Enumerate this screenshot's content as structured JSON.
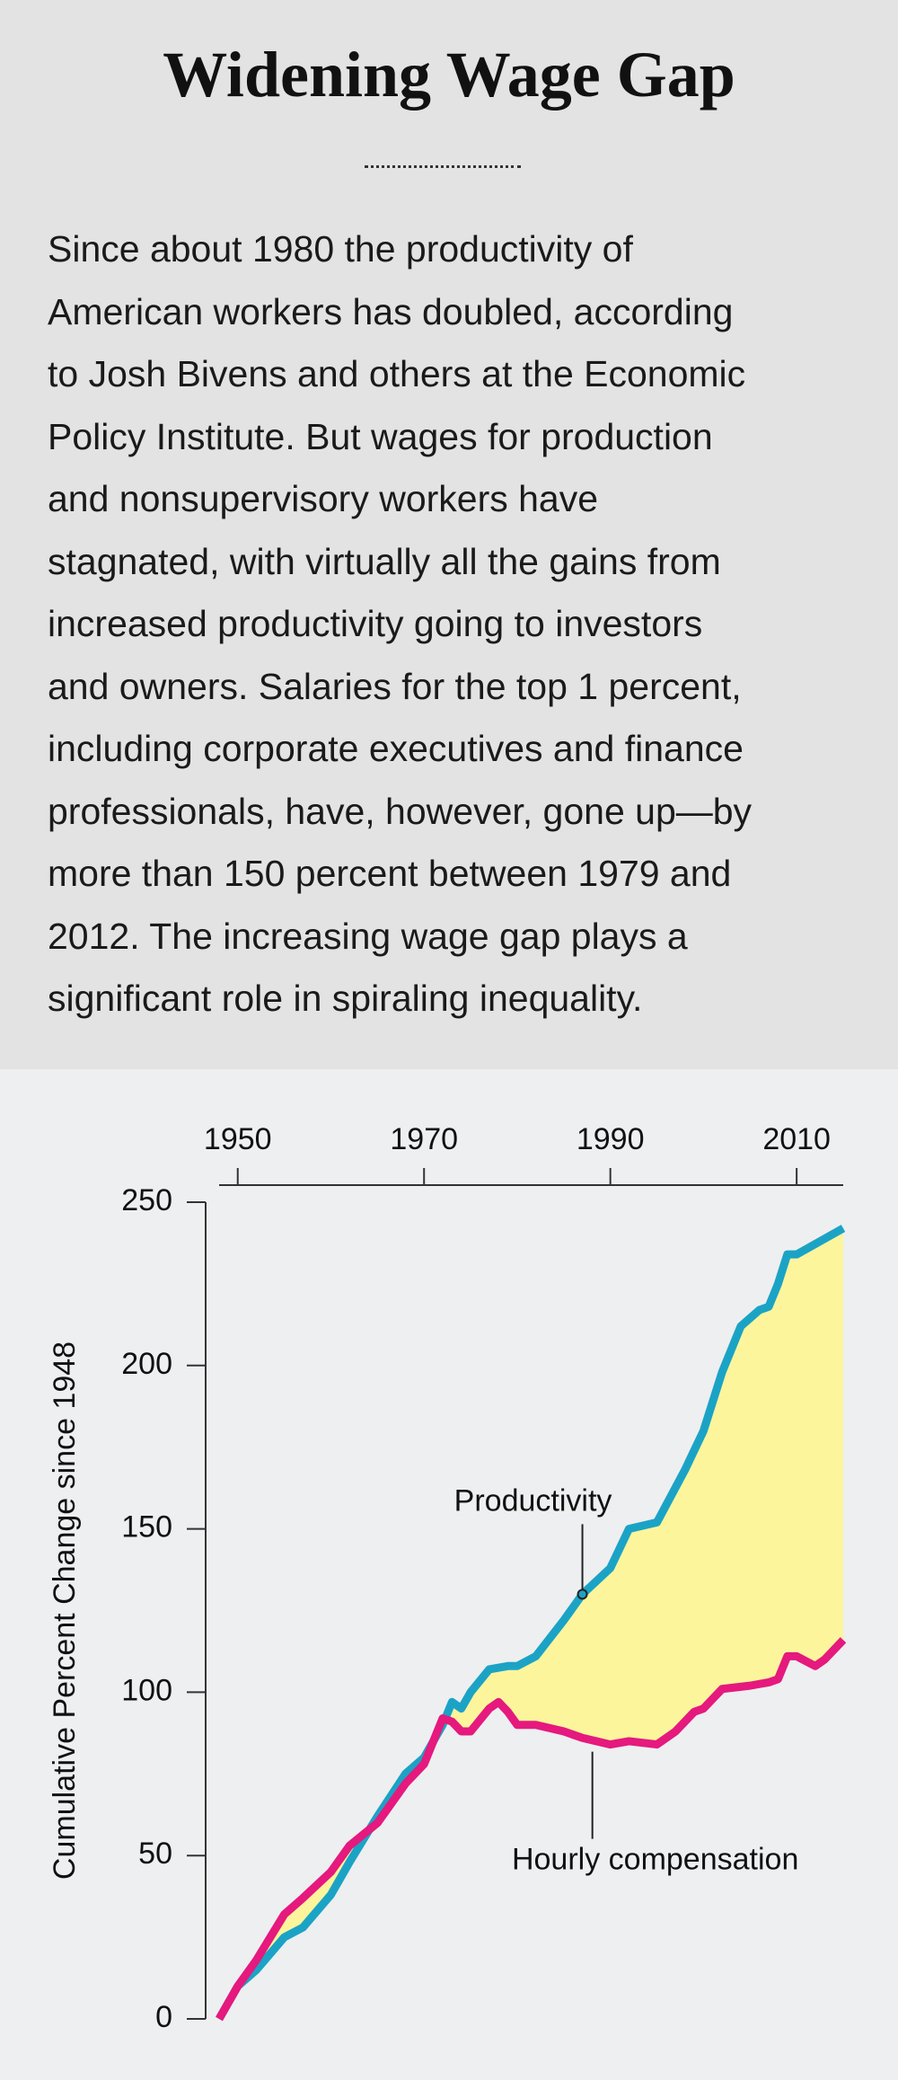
{
  "header": {
    "title": "Widening Wage Gap"
  },
  "body": {
    "lines": [
      "Since about 1980 the productivity of",
      "American workers has doubled, according",
      "to Josh Bivens and others at the Economic",
      "Policy Institute. But wages for production",
      "and nonsupervisory workers have",
      "stagnated, with virtually all the gains from",
      "increased productivity going to investors",
      "and owners. Salaries for the top 1 percent,",
      "including corporate executives and finance",
      "professionals, have, however, gone up—by",
      "more than 150 percent between 1979 and",
      "2012. The increasing wage gap plays a",
      "significant role in spiraling inequality."
    ]
  },
  "chart_data": {
    "type": "line",
    "y_label": "Cumulative Percent Change since 1948",
    "xlim": [
      1948,
      2015
    ],
    "xticks": [
      1950,
      1970,
      1990,
      2010
    ],
    "ylim": [
      0,
      250
    ],
    "yticks": [
      0,
      50,
      100,
      150,
      200,
      250
    ],
    "fill_between": true,
    "fill_color": "#fcf59c",
    "series": [
      {
        "name": "Productivity",
        "color": "#1ba3c6",
        "x": [
          1948,
          1950,
          1952,
          1955,
          1957,
          1960,
          1962,
          1965,
          1968,
          1970,
          1972,
          1973,
          1974,
          1975,
          1977,
          1979,
          1980,
          1982,
          1985,
          1987,
          1990,
          1992,
          1995,
          1998,
          2000,
          2002,
          2004,
          2006,
          2007,
          2008,
          2009,
          2010,
          2015
        ],
        "values": [
          0,
          10,
          15,
          25,
          28,
          38,
          48,
          62,
          75,
          80,
          90,
          97,
          95,
          100,
          107,
          108,
          108,
          111,
          122,
          130,
          138,
          150,
          152,
          168,
          180,
          198,
          212,
          217,
          218,
          225,
          234,
          234,
          242
        ]
      },
      {
        "name": "Hourly compensation",
        "color": "#e5197e",
        "x": [
          1948,
          1950,
          1952,
          1955,
          1957,
          1960,
          1962,
          1965,
          1968,
          1970,
          1972,
          1973,
          1974,
          1975,
          1977,
          1978,
          1979,
          1980,
          1982,
          1985,
          1987,
          1990,
          1992,
          1995,
          1997,
          1999,
          2000,
          2002,
          2005,
          2007,
          2008,
          2009,
          2010,
          2012,
          2013,
          2015
        ],
        "values": [
          0,
          10,
          18,
          32,
          37,
          45,
          53,
          60,
          72,
          78,
          92,
          91,
          88,
          88,
          95,
          97,
          94,
          90,
          90,
          88,
          86,
          84,
          85,
          84,
          88,
          94,
          95,
          101,
          102,
          103,
          104,
          111,
          111,
          108,
          110,
          116
        ]
      }
    ],
    "annotations": [
      {
        "text": "Productivity",
        "series": 0,
        "x": 1987
      },
      {
        "text": "Hourly compensation",
        "series": 1,
        "x": 1990
      }
    ]
  }
}
